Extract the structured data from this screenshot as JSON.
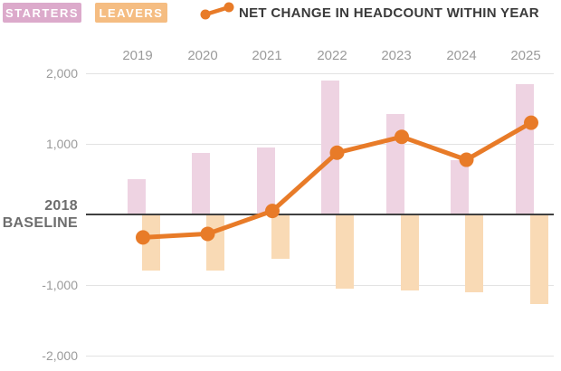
{
  "legend": {
    "starters_label": "STARTERS",
    "leavers_label": "LEAVERS",
    "net_label": "NET CHANGE IN HEADCOUNT WITHIN YEAR"
  },
  "baseline": {
    "line1": "2018",
    "line2": "BASELINE",
    "value": 0
  },
  "colors": {
    "starters_badge": "#dcaacb",
    "starters_bar": "#eed3e2",
    "leavers_badge": "#f5bd82",
    "leavers_bar": "#f9dab5",
    "net_line": "#e87b28",
    "baseline_line": "#404040",
    "gridline": "#e3e3e3",
    "axis_text": "#9b9b9b",
    "baseline_text": "#6d6d6d",
    "title_text": "#3a3a3a"
  },
  "chart_data": {
    "type": "bar",
    "title": "NET CHANGE IN HEADCOUNT WITHIN YEAR",
    "categories": [
      "2019",
      "2020",
      "2021",
      "2022",
      "2023",
      "2024",
      "2025"
    ],
    "series": [
      {
        "name": "STARTERS",
        "type": "bar",
        "color": "#eed3e2",
        "values": [
          500,
          875,
          950,
          1900,
          1425,
          775,
          1850
        ]
      },
      {
        "name": "LEAVERS",
        "type": "bar",
        "color": "#f9dab5",
        "values": [
          -800,
          -800,
          -625,
          -1050,
          -1075,
          -1100,
          -1275
        ]
      },
      {
        "name": "NET CHANGE IN HEADCOUNT WITHIN YEAR",
        "type": "line",
        "color": "#e87b28",
        "values": [
          -325,
          -275,
          50,
          875,
          1100,
          775,
          1300
        ]
      }
    ],
    "y_ticks": [
      {
        "label": "2,000",
        "value": 2000
      },
      {
        "label": "1,000",
        "value": 1000
      },
      {
        "label": "-1,000",
        "value": -1000
      },
      {
        "label": "-2,000",
        "value": -2000
      }
    ],
    "baseline_label": "2018 BASELINE",
    "baseline_value": 0,
    "ylim": [
      -2200,
      2200
    ],
    "grid": "horizontal",
    "legend_position": "top"
  }
}
